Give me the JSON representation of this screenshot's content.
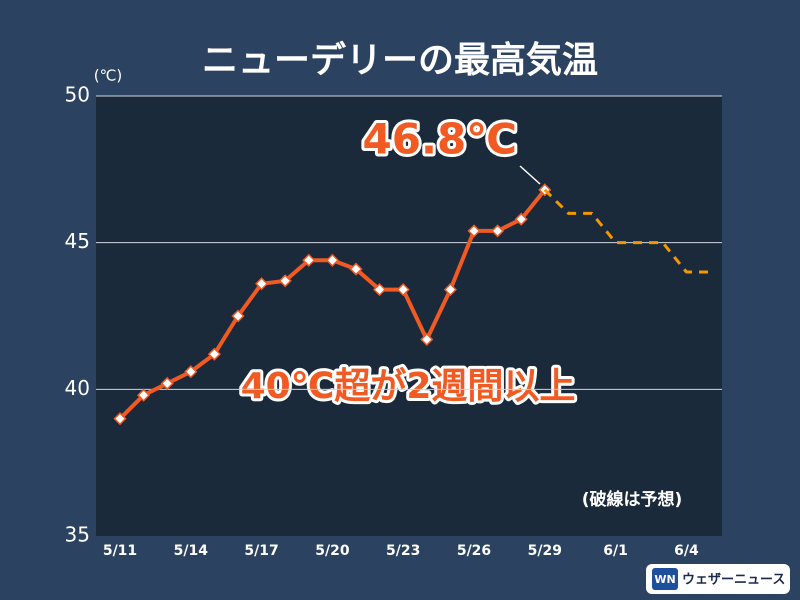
{
  "chart_data": {
    "type": "line",
    "title": "ニューデリーの最高気温",
    "y_label": "(℃)",
    "categories": [
      "5/11",
      null,
      null,
      "5/14",
      null,
      null,
      "5/17",
      null,
      null,
      "5/20",
      null,
      null,
      "5/23",
      null,
      null,
      "5/26",
      null,
      null,
      "5/29",
      null,
      null,
      "6/1",
      null,
      null,
      "6/4",
      null
    ],
    "series": [
      {
        "color": "#f15a22",
        "line_style": "solid",
        "markers": true,
        "values": [
          39.0,
          39.8,
          40.2,
          40.6,
          41.2,
          42.5,
          43.6,
          43.7,
          44.4,
          44.4,
          44.1,
          43.4,
          43.4,
          41.7,
          43.4,
          45.4,
          45.4,
          45.8,
          46.8,
          null,
          null,
          null,
          null,
          null,
          null,
          null
        ],
        "value_labels": [
          null,
          null,
          null,
          null,
          null,
          null,
          null,
          null,
          null,
          null,
          null,
          null,
          null,
          null,
          null,
          null,
          null,
          null,
          "46.8℃",
          null,
          null,
          null,
          null,
          null,
          null,
          null
        ]
      },
      {
        "color": "#f39800",
        "line_style": "dashed",
        "markers": false,
        "values": [
          null,
          null,
          null,
          null,
          null,
          null,
          null,
          null,
          null,
          null,
          null,
          null,
          null,
          null,
          null,
          null,
          null,
          null,
          46.8,
          46.0,
          46.0,
          45.0,
          45.0,
          45.0,
          44.0,
          44.0
        ]
      }
    ],
    "ylim": [
      35,
      50
    ],
    "yticks": [
      35,
      40,
      45,
      50
    ],
    "grid": true,
    "annotations": [
      "40℃超が2週間以上",
      "(破線は予想)"
    ],
    "source_logo": {
      "mark": "WN",
      "text": "ウェザーニュース"
    }
  }
}
